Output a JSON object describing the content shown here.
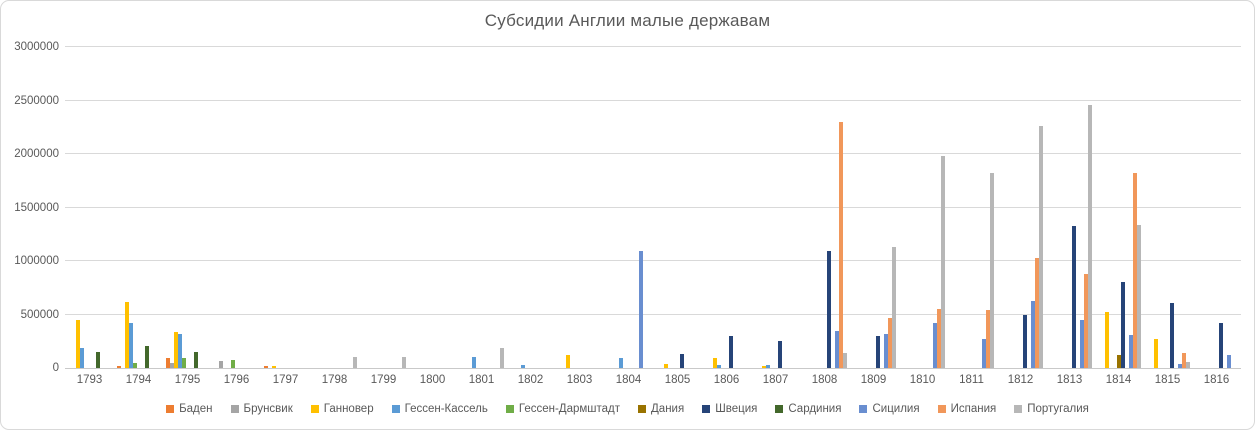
{
  "title": "Субсидии Англии малые державам",
  "colors": {
    "text": "#595959",
    "gridline": "#D9D9D9",
    "axis_line": "#C9C9C9",
    "border": "#D9D9D9",
    "background": "#FFFFFF"
  },
  "chart_data": {
    "type": "bar",
    "title": "Субсидии Англии малые державам",
    "xlabel": "",
    "ylabel": "",
    "ylim": [
      0,
      3000000
    ],
    "grid": true,
    "legend_position": "bottom",
    "y_ticks": [
      "0",
      "500000",
      "1000000",
      "1500000",
      "2000000",
      "2500000",
      "3000000"
    ],
    "categories": [
      "1793",
      "1794",
      "1795",
      "1796",
      "1797",
      "1798",
      "1799",
      "1800",
      "1801",
      "1802",
      "1803",
      "1804",
      "1805",
      "1806",
      "1807",
      "1808",
      "1809",
      "1810",
      "1811",
      "1812",
      "1813",
      "1814",
      "1815",
      "1816"
    ],
    "series": [
      {
        "name": "Баден",
        "color": "#ED7D31",
        "values": [
          0,
          20000,
          90000,
          0,
          15000,
          0,
          0,
          0,
          0,
          0,
          0,
          0,
          0,
          0,
          0,
          0,
          0,
          0,
          0,
          0,
          0,
          0,
          0,
          0
        ]
      },
      {
        "name": "Брунсвик",
        "color": "#A5A5A5",
        "values": [
          0,
          0,
          50000,
          70000,
          0,
          0,
          0,
          0,
          0,
          0,
          0,
          0,
          0,
          0,
          0,
          0,
          0,
          0,
          0,
          0,
          0,
          0,
          0,
          0
        ]
      },
      {
        "name": "Ганновер",
        "color": "#FFC000",
        "values": [
          450000,
          620000,
          340000,
          0,
          15000,
          0,
          0,
          0,
          0,
          0,
          120000,
          0,
          35000,
          90000,
          20000,
          0,
          0,
          0,
          0,
          0,
          0,
          520000,
          270000,
          0
        ]
      },
      {
        "name": "Гессен-Кассель",
        "color": "#5B9BD5",
        "values": [
          190000,
          420000,
          320000,
          0,
          0,
          0,
          0,
          0,
          100000,
          30000,
          0,
          90000,
          0,
          25000,
          30000,
          0,
          0,
          0,
          0,
          0,
          0,
          0,
          0,
          0
        ]
      },
      {
        "name": "Гессен-Дармштадт",
        "color": "#70AD47",
        "values": [
          0,
          45000,
          90000,
          75000,
          0,
          0,
          0,
          0,
          0,
          0,
          0,
          0,
          0,
          0,
          0,
          0,
          0,
          0,
          0,
          0,
          0,
          0,
          0,
          0
        ]
      },
      {
        "name": "Дания",
        "color": "#997300",
        "values": [
          0,
          0,
          0,
          0,
          0,
          0,
          0,
          0,
          0,
          0,
          0,
          0,
          0,
          0,
          0,
          0,
          0,
          0,
          0,
          0,
          0,
          120000,
          0,
          0
        ]
      },
      {
        "name": "Швеция",
        "color": "#264478",
        "values": [
          0,
          0,
          0,
          0,
          0,
          0,
          0,
          0,
          0,
          0,
          0,
          0,
          130000,
          300000,
          250000,
          1090000,
          300000,
          0,
          0,
          500000,
          1330000,
          800000,
          610000,
          420000
        ]
      },
      {
        "name": "Сардиния",
        "color": "#43682B",
        "values": [
          150000,
          210000,
          150000,
          0,
          0,
          0,
          0,
          0,
          0,
          0,
          0,
          0,
          0,
          0,
          0,
          0,
          0,
          0,
          0,
          0,
          0,
          0,
          0,
          0
        ]
      },
      {
        "name": "Сицилия",
        "color": "#698ED0",
        "values": [
          0,
          0,
          0,
          0,
          0,
          0,
          0,
          0,
          0,
          0,
          0,
          1090000,
          0,
          0,
          0,
          350000,
          320000,
          420000,
          270000,
          630000,
          450000,
          310000,
          40000,
          120000
        ]
      },
      {
        "name": "Испания",
        "color": "#F1975A",
        "values": [
          0,
          0,
          0,
          0,
          0,
          0,
          0,
          0,
          0,
          0,
          0,
          0,
          0,
          0,
          0,
          2300000,
          470000,
          550000,
          540000,
          1030000,
          880000,
          1820000,
          140000,
          0
        ]
      },
      {
        "name": "Португалия",
        "color": "#B7B7B7",
        "values": [
          0,
          0,
          0,
          0,
          0,
          100000,
          100000,
          0,
          190000,
          0,
          0,
          0,
          0,
          0,
          0,
          140000,
          1130000,
          1980000,
          1820000,
          2260000,
          2460000,
          1340000,
          60000,
          0
        ]
      }
    ]
  }
}
